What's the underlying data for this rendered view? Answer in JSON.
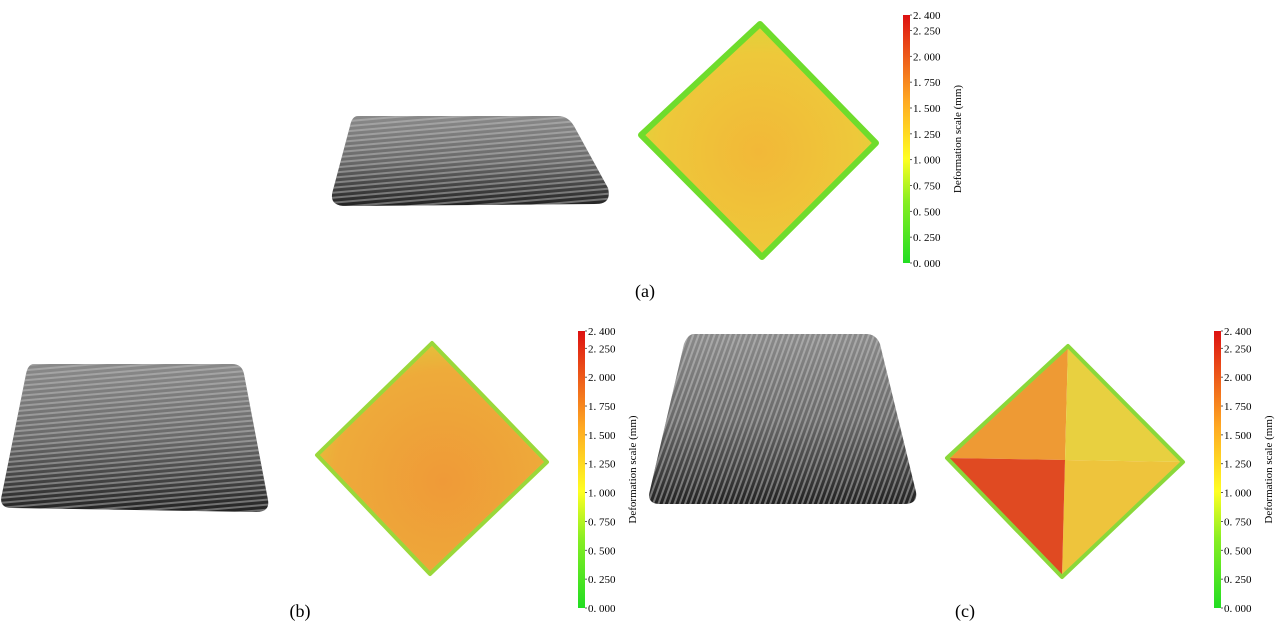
{
  "panels": [
    {
      "label": "(a)",
      "colorbar": {
        "title": "Deformation scale (mm)",
        "ticks": [
          {
            "value": 0,
            "label": "0. 000"
          },
          {
            "value": 0.25,
            "label": "0. 250"
          },
          {
            "value": 0.5,
            "label": "0. 500"
          },
          {
            "value": 0.75,
            "label": "0. 750"
          },
          {
            "value": 1,
            "label": "1. 000"
          },
          {
            "value": 1.25,
            "label": "1. 250"
          },
          {
            "value": 1.5,
            "label": "1. 500"
          },
          {
            "value": 1.75,
            "label": "1. 750"
          },
          {
            "value": 2,
            "label": "2. 000"
          },
          {
            "value": 2.25,
            "label": "2. 250"
          },
          {
            "value": 2.4,
            "label": "2. 400"
          }
        ]
      }
    },
    {
      "label": "(b)",
      "colorbar": {
        "title": "Deformation scale (mm)",
        "ticks": [
          {
            "value": 0,
            "label": "0. 000"
          },
          {
            "value": 0.25,
            "label": "0. 250"
          },
          {
            "value": 0.5,
            "label": "0. 500"
          },
          {
            "value": 0.75,
            "label": "0. 750"
          },
          {
            "value": 1,
            "label": "1. 000"
          },
          {
            "value": 1.25,
            "label": "1. 250"
          },
          {
            "value": 1.5,
            "label": "1. 500"
          },
          {
            "value": 1.75,
            "label": "1. 750"
          },
          {
            "value": 2,
            "label": "2. 000"
          },
          {
            "value": 2.25,
            "label": "2. 250"
          },
          {
            "value": 2.4,
            "label": "2. 400"
          }
        ]
      }
    },
    {
      "label": "(c)",
      "colorbar": {
        "title": "Deformation scale (mm)",
        "ticks": [
          {
            "value": 0,
            "label": "0. 000"
          },
          {
            "value": 0.25,
            "label": "0. 250"
          },
          {
            "value": 0.5,
            "label": "0. 500"
          },
          {
            "value": 0.75,
            "label": "0. 750"
          },
          {
            "value": 1,
            "label": "1. 000"
          },
          {
            "value": 1.25,
            "label": "1. 250"
          },
          {
            "value": 1.5,
            "label": "1. 500"
          },
          {
            "value": 1.75,
            "label": "1. 750"
          },
          {
            "value": 2,
            "label": "2. 000"
          },
          {
            "value": 2.25,
            "label": "2. 250"
          },
          {
            "value": 2.4,
            "label": "2. 400"
          }
        ]
      }
    }
  ]
}
